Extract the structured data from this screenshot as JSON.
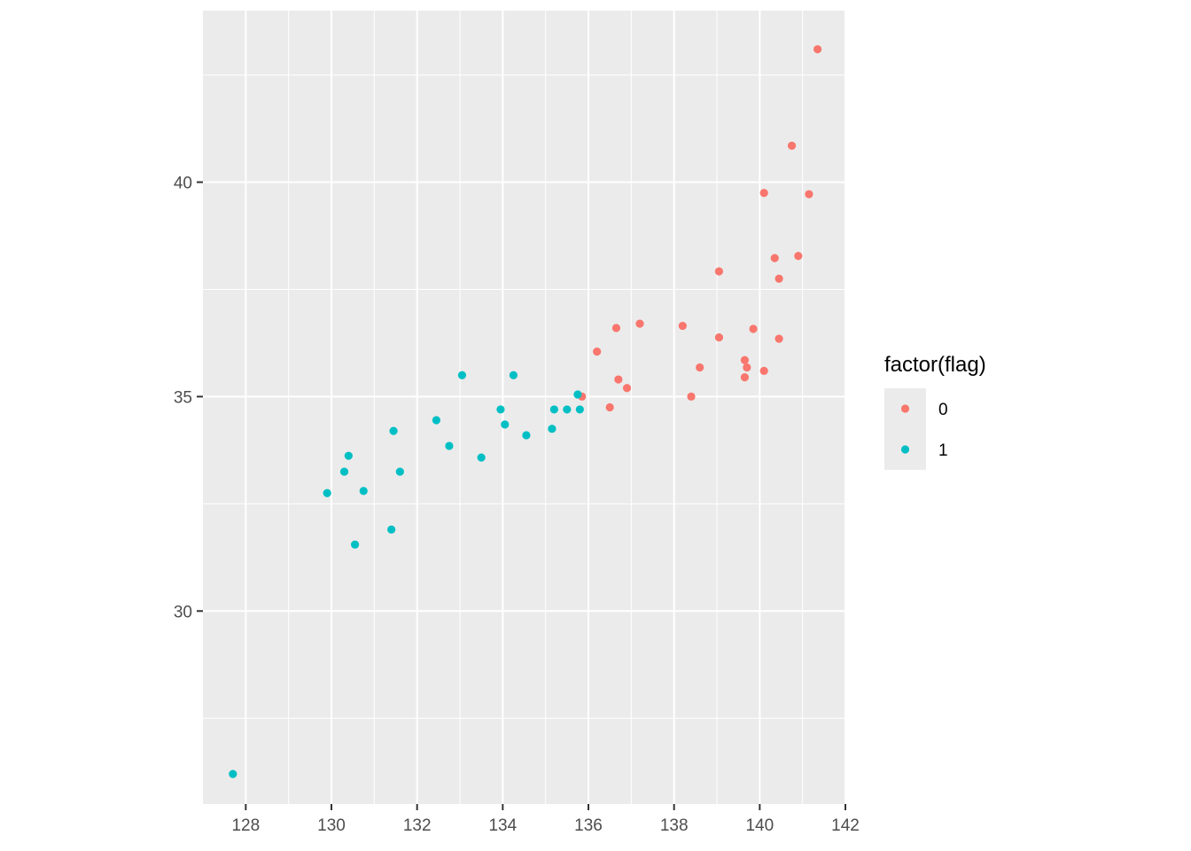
{
  "chart_data": {
    "type": "scatter",
    "title": "",
    "xlabel": "",
    "ylabel": "",
    "xlim": [
      127,
      142
    ],
    "ylim": [
      25.5,
      44
    ],
    "x_ticks": [
      128,
      130,
      132,
      134,
      136,
      138,
      140,
      142
    ],
    "y_ticks": [
      30,
      35,
      40
    ],
    "grid": true,
    "legend": {
      "title": "factor(flag)",
      "placement": "right"
    },
    "series": [
      {
        "name": "0",
        "color": "#F8766D",
        "points": [
          [
            141.35,
            43.1
          ],
          [
            140.75,
            40.85
          ],
          [
            140.1,
            39.75
          ],
          [
            141.15,
            39.72
          ],
          [
            140.9,
            38.28
          ],
          [
            140.35,
            38.23
          ],
          [
            140.45,
            37.75
          ],
          [
            139.05,
            37.92
          ],
          [
            137.2,
            36.7
          ],
          [
            136.65,
            36.6
          ],
          [
            138.2,
            36.65
          ],
          [
            139.85,
            36.58
          ],
          [
            139.05,
            36.38
          ],
          [
            140.45,
            36.35
          ],
          [
            136.2,
            36.05
          ],
          [
            138.6,
            35.68
          ],
          [
            139.65,
            35.85
          ],
          [
            139.7,
            35.68
          ],
          [
            140.1,
            35.6
          ],
          [
            139.65,
            35.45
          ],
          [
            136.7,
            35.4
          ],
          [
            136.9,
            35.2
          ],
          [
            135.85,
            35.0
          ],
          [
            138.4,
            35.0
          ],
          [
            136.5,
            34.75
          ]
        ]
      },
      {
        "name": "1",
        "color": "#00BFC4",
        "points": [
          [
            133.05,
            35.5
          ],
          [
            134.25,
            35.5
          ],
          [
            135.75,
            35.05
          ],
          [
            133.95,
            34.7
          ],
          [
            135.2,
            34.7
          ],
          [
            135.5,
            34.7
          ],
          [
            135.8,
            34.7
          ],
          [
            132.45,
            34.45
          ],
          [
            134.05,
            34.35
          ],
          [
            135.15,
            34.25
          ],
          [
            131.45,
            34.2
          ],
          [
            134.55,
            34.1
          ],
          [
            132.75,
            33.85
          ],
          [
            130.4,
            33.62
          ],
          [
            133.5,
            33.58
          ],
          [
            130.3,
            33.25
          ],
          [
            131.6,
            33.25
          ],
          [
            129.9,
            32.75
          ],
          [
            130.75,
            32.8
          ],
          [
            131.4,
            31.9
          ],
          [
            130.55,
            31.55
          ],
          [
            127.7,
            26.2
          ]
        ]
      }
    ]
  }
}
